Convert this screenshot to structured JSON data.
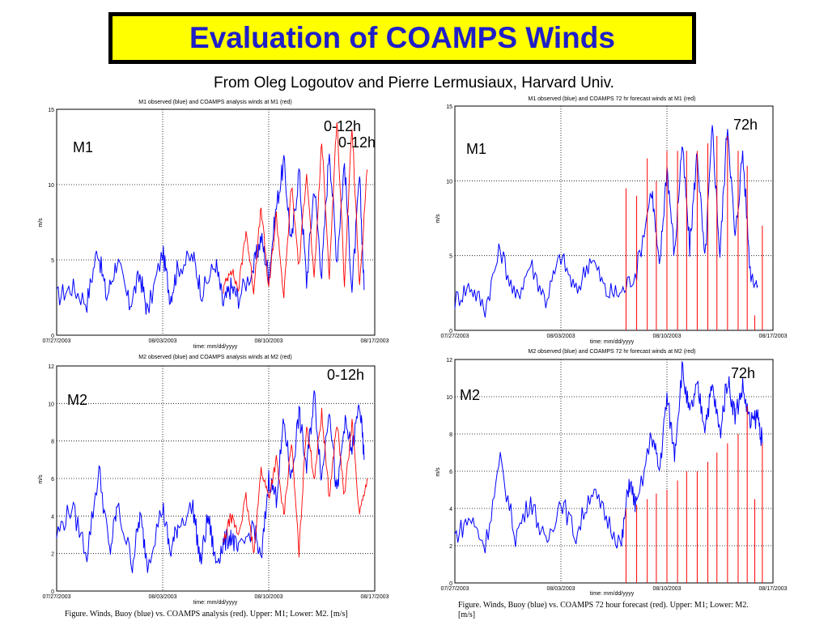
{
  "page": {
    "title": "Evaluation of COAMPS Winds",
    "subtitle": "From Oleg Logoutov and Pierre Lermusiaux, Harvard Univ.",
    "caption_left": "Figure. Winds, Buoy (blue) vs. COAMPS analysis (red). Upper: M1; Lower: M2. [m/s]",
    "caption_right_line1": "Figure. Winds, Buoy (blue) vs. COAMPS 72 hour forecast (red). Upper: M1; Lower: M2.",
    "caption_right_line2": "[m/s]"
  },
  "colors": {
    "observed": "#0000ff",
    "model": "#ff0000",
    "title_fill": "#ffff00",
    "title_text": "#1f1fc8"
  },
  "chart_data": [
    {
      "type": "line",
      "title": "M1 observed (blue) and COAMPS analysis winds at M1 (red)",
      "xlabel": "time: mm/dd/yyyy",
      "ylabel": "m/s",
      "ylim": [
        0,
        15
      ],
      "yticks": [
        0,
        5,
        10,
        15
      ],
      "xticks": [
        "07/27/2003",
        "08/03/2003",
        "08/10/2003",
        "08/17/2003"
      ],
      "xrange_days": [
        0,
        21
      ],
      "grid": true,
      "annotations": [
        "M1",
        "0-12h",
        "0-12h"
      ],
      "series": [
        {
          "name": "observed (blue)",
          "style": "line",
          "points": [
            [
              0,
              2.5
            ],
            [
              1,
              3.2
            ],
            [
              2,
              2.2
            ],
            [
              2.7,
              5.8
            ],
            [
              3.3,
              2.5
            ],
            [
              4,
              5.0
            ],
            [
              4.8,
              2.0
            ],
            [
              5.5,
              4.0
            ],
            [
              6,
              1.5
            ],
            [
              7,
              5.5
            ],
            [
              7.5,
              2.5
            ],
            [
              8,
              4.5
            ],
            [
              9,
              5.2
            ],
            [
              9.6,
              2.8
            ],
            [
              10.5,
              4.8
            ],
            [
              11,
              2.0
            ],
            [
              11.5,
              3.2
            ],
            [
              12,
              2.5
            ],
            [
              13,
              4.5
            ],
            [
              13.5,
              6.5
            ],
            [
              14,
              4.0
            ],
            [
              14.5,
              8.5
            ],
            [
              15,
              11.5
            ],
            [
              15.5,
              6.0
            ],
            [
              16,
              11.0
            ],
            [
              16.5,
              3.5
            ],
            [
              17,
              10.0
            ],
            [
              17.5,
              4.0
            ],
            [
              18,
              12.5
            ],
            [
              18.5,
              5.0
            ],
            [
              19,
              11.5
            ],
            [
              19.5,
              3.0
            ],
            [
              20,
              10.5
            ],
            [
              20.3,
              3.0
            ]
          ]
        },
        {
          "name": "analysis (red)",
          "style": "line",
          "points": [
            [
              11,
              3.0
            ],
            [
              11.5,
              4.5
            ],
            [
              12,
              3.0
            ],
            [
              12.5,
              7.0
            ],
            [
              13,
              3.0
            ],
            [
              13.5,
              8.5
            ],
            [
              14,
              3.0
            ],
            [
              14.5,
              8.0
            ],
            [
              15,
              2.5
            ],
            [
              15.5,
              10.0
            ],
            [
              16,
              4.5
            ],
            [
              16.5,
              11.0
            ],
            [
              17,
              3.5
            ],
            [
              17.5,
              13.0
            ],
            [
              18,
              4.0
            ],
            [
              18.5,
              14.5
            ],
            [
              19,
              3.5
            ],
            [
              19.5,
              14.0
            ],
            [
              20,
              3.0
            ],
            [
              20.5,
              11.0
            ]
          ]
        }
      ]
    },
    {
      "type": "line",
      "title": "M1 observed (blue) and COAMPS 72 hr forecast winds at M1 (red)",
      "xlabel": "time: mm/dd/yyyy",
      "ylabel": "m/s",
      "ylim": [
        0,
        15
      ],
      "yticks": [
        0,
        5,
        10,
        15
      ],
      "xticks": [
        "07/27/2003",
        "08/03/2003",
        "08/10/2003",
        "08/17/2003"
      ],
      "xrange_days": [
        0,
        21
      ],
      "grid": true,
      "annotations": [
        "M1",
        "72h"
      ],
      "series": [
        {
          "name": "observed (blue)",
          "style": "line",
          "points": [
            [
              0,
              2.0
            ],
            [
              1,
              3.0
            ],
            [
              2,
              1.5
            ],
            [
              3,
              5.5
            ],
            [
              4,
              2.0
            ],
            [
              5,
              4.5
            ],
            [
              6,
              2.0
            ],
            [
              7,
              5.0
            ],
            [
              8,
              2.5
            ],
            [
              9,
              5.0
            ],
            [
              10,
              2.5
            ],
            [
              11,
              2.5
            ],
            [
              12,
              4.0
            ],
            [
              13,
              9.5
            ],
            [
              13.5,
              4.0
            ],
            [
              14,
              11.0
            ],
            [
              14.5,
              5.0
            ],
            [
              15,
              12.5
            ],
            [
              15.5,
              5.5
            ],
            [
              16,
              12.0
            ],
            [
              16.5,
              4.5
            ],
            [
              17,
              13.5
            ],
            [
              17.5,
              5.0
            ],
            [
              18,
              14.0
            ],
            [
              18.5,
              6.0
            ],
            [
              19,
              12.0
            ],
            [
              19.5,
              4.0
            ],
            [
              20,
              3.0
            ]
          ]
        },
        {
          "name": "72 hr forecast (red)",
          "style": "spikes",
          "points": [
            [
              11.3,
              9.5
            ],
            [
              12,
              9.0
            ],
            [
              12.7,
              11.5
            ],
            [
              13.3,
              10.0
            ],
            [
              14,
              12.0
            ],
            [
              14.7,
              12.0
            ],
            [
              15.3,
              12.0
            ],
            [
              16,
              12.0
            ],
            [
              16.7,
              12.5
            ],
            [
              17.3,
              13.0
            ],
            [
              18,
              13.0
            ],
            [
              18.7,
              12.0
            ],
            [
              19.3,
              11.0
            ],
            [
              19.8,
              1.0
            ],
            [
              20.3,
              7.0
            ]
          ]
        }
      ]
    },
    {
      "type": "line",
      "title": "M2 observed (blue) and COAMPS analysis winds at M2 (red)",
      "xlabel": "time: mm/dd/yyyy",
      "ylabel": "m/s",
      "ylim": [
        0,
        12
      ],
      "yticks": [
        0,
        2,
        4,
        6,
        8,
        10,
        12
      ],
      "xticks": [
        "07/27/2003",
        "08/03/2003",
        "08/10/2003",
        "08/17/2003"
      ],
      "xrange_days": [
        0,
        21
      ],
      "grid": true,
      "annotations": [
        "M2",
        "0-12h"
      ],
      "series": [
        {
          "name": "observed (blue)",
          "style": "line",
          "points": [
            [
              0,
              3.0
            ],
            [
              1,
              4.5
            ],
            [
              2,
              2.0
            ],
            [
              2.8,
              6.5
            ],
            [
              3.5,
              2.0
            ],
            [
              4,
              4.5
            ],
            [
              5,
              1.5
            ],
            [
              5.5,
              4.0
            ],
            [
              6,
              1.5
            ],
            [
              7,
              4.5
            ],
            [
              7.5,
              2.0
            ],
            [
              8,
              3.5
            ],
            [
              9,
              4.5
            ],
            [
              9.5,
              1.5
            ],
            [
              10,
              4.0
            ],
            [
              10.5,
              1.5
            ],
            [
              11,
              2.5
            ],
            [
              11.5,
              3.0
            ],
            [
              12,
              2.0
            ],
            [
              13,
              3.5
            ],
            [
              13.5,
              1.5
            ],
            [
              14,
              6.0
            ],
            [
              14.5,
              5.0
            ],
            [
              15,
              9.0
            ],
            [
              15.5,
              6.0
            ],
            [
              16,
              9.5
            ],
            [
              16.5,
              6.5
            ],
            [
              17,
              10.5
            ],
            [
              17.5,
              6.0
            ],
            [
              18,
              10.0
            ],
            [
              18.5,
              5.0
            ],
            [
              19,
              9.0
            ],
            [
              19.5,
              7.5
            ],
            [
              20,
              10.0
            ],
            [
              20.3,
              7.0
            ]
          ]
        },
        {
          "name": "analysis (red)",
          "style": "line",
          "points": [
            [
              11,
              2.5
            ],
            [
              11.5,
              4.0
            ],
            [
              12,
              3.0
            ],
            [
              12.5,
              5.0
            ],
            [
              13,
              2.0
            ],
            [
              13.5,
              6.5
            ],
            [
              14,
              5.0
            ],
            [
              14.5,
              7.0
            ],
            [
              15,
              4.0
            ],
            [
              15.5,
              8.0
            ],
            [
              16,
              2.0
            ],
            [
              16.5,
              9.0
            ],
            [
              17,
              6.0
            ],
            [
              17.5,
              9.5
            ],
            [
              18,
              5.0
            ],
            [
              18.5,
              9.0
            ],
            [
              19,
              5.0
            ],
            [
              19.5,
              9.0
            ],
            [
              20,
              4.0
            ],
            [
              20.5,
              6.0
            ]
          ]
        }
      ]
    },
    {
      "type": "line",
      "title": "M2 observed (blue) and COAMPS 72 hr forecast winds at M2 (red)",
      "xlabel": "time: mm/dd/yyyy",
      "ylabel": "m/s",
      "ylim": [
        0,
        12
      ],
      "yticks": [
        0,
        2,
        4,
        6,
        8,
        10,
        12
      ],
      "xticks": [
        "07/27/2003",
        "08/03/2003",
        "08/10/2003",
        "08/17/2003"
      ],
      "xrange_days": [
        0,
        21
      ],
      "grid": true,
      "annotations": [
        "M2",
        "72h"
      ],
      "series": [
        {
          "name": "observed (blue)",
          "style": "line",
          "points": [
            [
              0,
              2.5
            ],
            [
              1,
              3.5
            ],
            [
              2,
              2.0
            ],
            [
              3,
              6.5
            ],
            [
              4,
              2.5
            ],
            [
              5,
              4.5
            ],
            [
              6,
              2.0
            ],
            [
              7,
              4.5
            ],
            [
              8,
              2.5
            ],
            [
              9,
              5.0
            ],
            [
              10,
              3.5
            ],
            [
              11,
              2.0
            ],
            [
              11.5,
              5.5
            ],
            [
              12,
              4.0
            ],
            [
              13,
              8.0
            ],
            [
              13.5,
              6.0
            ],
            [
              14,
              10.0
            ],
            [
              14.5,
              7.0
            ],
            [
              15,
              11.5
            ],
            [
              15.5,
              9.0
            ],
            [
              16,
              10.5
            ],
            [
              16.5,
              8.5
            ],
            [
              17,
              10.5
            ],
            [
              17.5,
              8.0
            ],
            [
              18,
              11.0
            ],
            [
              18.5,
              9.0
            ],
            [
              19,
              10.5
            ],
            [
              19.5,
              8.5
            ],
            [
              20,
              9.0
            ],
            [
              20.3,
              7.5
            ]
          ]
        },
        {
          "name": "72 hr forecast (red)",
          "style": "spikes",
          "points": [
            [
              11.3,
              4.0
            ],
            [
              12,
              4.2
            ],
            [
              12.7,
              4.5
            ],
            [
              13.3,
              4.8
            ],
            [
              14,
              5.0
            ],
            [
              14.7,
              5.5
            ],
            [
              15.3,
              6.0
            ],
            [
              16,
              6.0
            ],
            [
              16.7,
              6.5
            ],
            [
              17.3,
              7.0
            ],
            [
              18,
              7.5
            ],
            [
              18.7,
              8.0
            ],
            [
              19.3,
              9.5
            ],
            [
              19.8,
              4.5
            ],
            [
              20.3,
              7.5
            ]
          ]
        }
      ]
    }
  ]
}
